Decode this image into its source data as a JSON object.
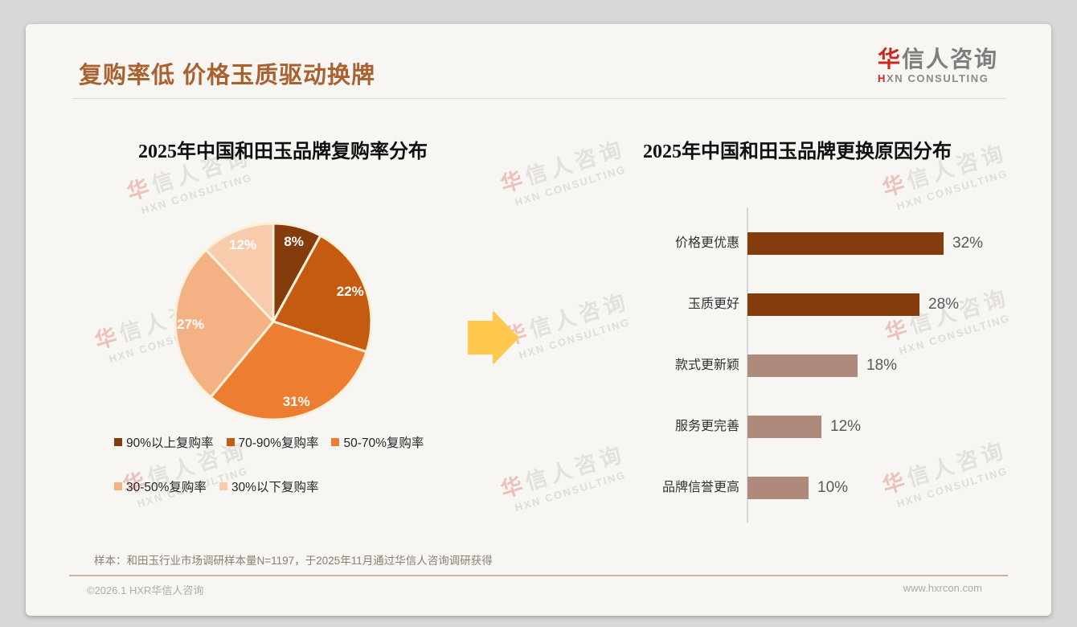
{
  "header": {
    "title": "复购率低 价格玉质驱动换牌"
  },
  "logo": {
    "cn_accent": "华",
    "cn_rest": "信人咨询",
    "en_accent": "H",
    "en_rest": "XN CONSULTING"
  },
  "watermark": {
    "line1_accent": "华",
    "line1_rest": "信人咨询",
    "line2": "HXN CONSULTING"
  },
  "chart_data": [
    {
      "type": "pie",
      "title": "2025年中国和田玉品牌复购率分布",
      "labels": [
        "90%以上复购率",
        "70-90%复购率",
        "50-70%复购率",
        "30-50%复购率",
        "30%以下复购率"
      ],
      "values": [
        8,
        22,
        31,
        27,
        12
      ],
      "data_labels": [
        "8%",
        "22%",
        "31%",
        "27%",
        "12%"
      ],
      "colors": [
        "#843C0C",
        "#C55A11",
        "#ED7D31",
        "#F4B183",
        "#F8CBAD"
      ],
      "start_angle": "top",
      "direction": "clockwise",
      "legend_position": "bottom",
      "slice_border_color": "#FBF1D8",
      "label_color": "#FFFFFF"
    },
    {
      "type": "bar",
      "orientation": "horizontal",
      "title": "2025年中国和田玉品牌更换原因分布",
      "categories": [
        "价格更优惠",
        "玉质更好",
        "款式更新颖",
        "服务更完善",
        "品牌信誉更高"
      ],
      "values": [
        32,
        28,
        18,
        12,
        10
      ],
      "data_labels": [
        "32%",
        "28%",
        "18%",
        "12%",
        "10%"
      ],
      "bar_colors": [
        "#843C0C",
        "#843C0C",
        "#AE8A7D",
        "#AE8A7D",
        "#AE8A7D"
      ],
      "value_label_color": "#595959",
      "axis_color": "#D9D9D9"
    }
  ],
  "arrow_color": "#FFC84F",
  "footnote": "样本：和田玉行业市场调研样本量N=1197，于2025年11月通过华信人咨询调研获得",
  "footer": {
    "left": "©2026.1 HXR华信人咨询",
    "right": "www.hxrcon.com"
  }
}
